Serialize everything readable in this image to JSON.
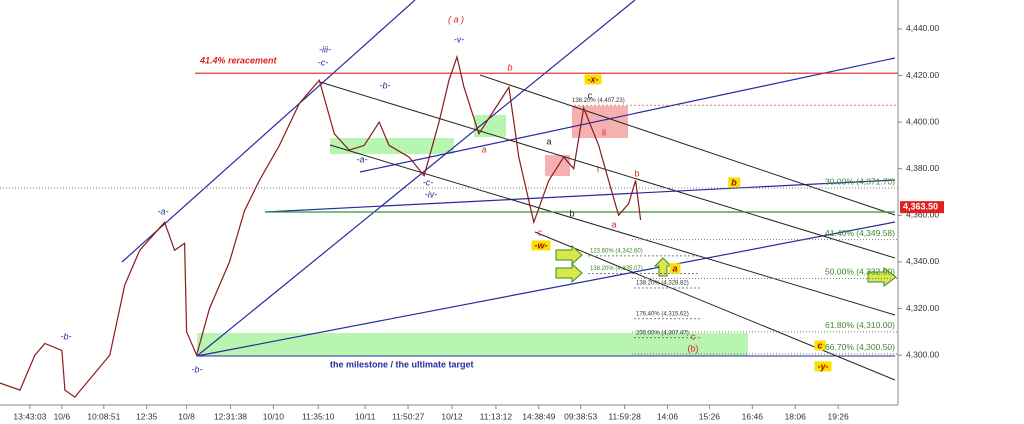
{
  "chart_data": {
    "type": "line",
    "series": [
      {
        "name": null,
        "color": "#8b1a1a",
        "x": [
          0,
          4,
          7,
          9,
          12.4,
          13,
          15,
          22,
          25,
          28,
          33,
          35,
          37,
          37.4,
          39.4,
          42,
          46,
          49,
          52,
          56,
          60,
          64,
          67,
          70,
          73,
          76,
          78,
          82,
          85,
          88,
          90,
          91.6,
          93,
          96,
          99,
          102,
          104,
          107,
          110,
          113,
          115,
          117,
          120,
          122,
          124,
          126,
          127.4,
          128.4
        ],
        "values": [
          4288,
          4285,
          4300,
          4305,
          4302,
          4285,
          4282,
          4300,
          4330,
          4345,
          4357,
          4345,
          4348,
          4310,
          4300,
          4320,
          4340,
          4362,
          4375,
          4390,
          4408,
          4418,
          4395,
          4388,
          4390,
          4400,
          4390,
          4385,
          4377,
          4400,
          4418,
          4428,
          4415,
          4395,
          4405,
          4415,
          4385,
          4357,
          4375,
          4385,
          4380,
          4406,
          4390,
          4375,
          4360,
          4365,
          4375,
          4358
        ]
      }
    ],
    "xlim": [
      0,
      180
    ],
    "xticks": [
      {
        "value": 6,
        "label": "13:43:03"
      },
      {
        "value": 12.4,
        "label": "10/6"
      },
      {
        "value": 20.8,
        "label": "10:08:51"
      },
      {
        "value": 29.4,
        "label": "12:35"
      },
      {
        "value": 37.4,
        "label": "10/8"
      },
      {
        "value": 46.2,
        "label": "12:31:38"
      },
      {
        "value": 54.8,
        "label": "10/10"
      },
      {
        "value": 63.8,
        "label": "11:35:10"
      },
      {
        "value": 73.2,
        "label": "10/11"
      },
      {
        "value": 81.8,
        "label": "11:50:27"
      },
      {
        "value": 90.6,
        "label": "10/12"
      },
      {
        "value": 99.4,
        "label": "11:13:12"
      },
      {
        "value": 108,
        "label": "14:38:49"
      },
      {
        "value": 116.4,
        "label": "09:38:53"
      },
      {
        "value": 125.2,
        "label": "11:59:28"
      },
      {
        "value": 133.8,
        "label": "14:06"
      },
      {
        "value": 142.2,
        "label": "15:26"
      },
      {
        "value": 150.8,
        "label": "16:46"
      },
      {
        "value": 159.4,
        "label": "18:06"
      },
      {
        "value": 168,
        "label": "19:26"
      }
    ],
    "ylim": [
      4278.6,
      4452.4
    ],
    "yticks": [
      {
        "value": 4300,
        "label": "4,300.00"
      },
      {
        "value": 4320,
        "label": "4,320.00"
      },
      {
        "value": 4340,
        "label": "4,340.00"
      },
      {
        "value": 4360,
        "label": "4,360.00"
      },
      {
        "value": 4380,
        "label": "4,380.00"
      },
      {
        "value": 4400,
        "label": "4,400.00"
      },
      {
        "value": 4420,
        "label": "4,420.00"
      },
      {
        "value": 4440,
        "label": "4,440.00"
      }
    ],
    "last_price": {
      "value": 4363.5,
      "label": "4,363.50"
    },
    "fib_levels": [
      {
        "value": 4371.7,
        "label": "30.00% (4,371.70)"
      },
      {
        "value": 4349.58,
        "label": "41.40% (4,349.58)"
      },
      {
        "value": 4332.9,
        "label": "50.00% (4,332.90)"
      },
      {
        "value": 4310,
        "label": "61.80% (4,310.00)"
      },
      {
        "value": 4300.5,
        "label": "66.70% (4,300.50)"
      }
    ],
    "ext_levels": [
      {
        "value": 4407.23,
        "label": "138.20% (4,407.23)"
      },
      {
        "value": 4342.6,
        "label": "123.60% (4,342.60)"
      },
      {
        "value": 4335.07,
        "label": "138.20% (4,335.07)"
      },
      {
        "value": 4328.82,
        "label": "138.20% (4,328.82)"
      },
      {
        "value": 4315.62,
        "label": "176.40% (4,315.62)"
      },
      {
        "value": 4307.47,
        "label": "200.00% (4,307.47)"
      }
    ],
    "retracement": {
      "value": 4421,
      "label": "41.4% reracement"
    },
    "annotations": [
      "( a )",
      "-iii-",
      "-c-",
      "-v-",
      "b",
      "-x-",
      "c",
      "-b-",
      "a",
      "ii",
      "i",
      "a",
      "-a-",
      "-c-",
      "-iv-",
      "b",
      "c",
      "a",
      "b",
      "-a-",
      "-b-",
      "-b-",
      "-w-",
      "b",
      "a",
      "c",
      "-y-",
      "the milestone / the ultimate target",
      "c",
      "(b)"
    ]
  }
}
